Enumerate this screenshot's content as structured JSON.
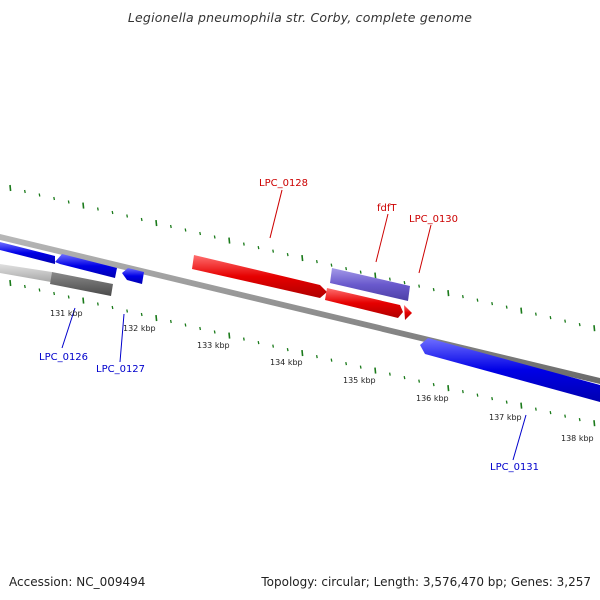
{
  "title": "Legionella pneumophila str. Corby, complete genome",
  "footer": {
    "accession": "Accession: NC_009494",
    "topology": "Topology: circular; Length: 3,576,470 bp; Genes: 3,257"
  },
  "colors": {
    "forward_gene": "#e60000",
    "reverse_gene": "#0000e6",
    "highlight_gene": "#6a5acd",
    "grey_gene": "#888888",
    "tick": "#1a7a1a",
    "axis": "#808080",
    "forward_label": "#cc0000",
    "reverse_label": "#0000cc"
  },
  "tick_labels": [
    "131 kbp",
    "132 kbp",
    "133 kbp",
    "134 kbp",
    "135 kbp",
    "136 kbp",
    "137 kbp",
    "138 kbp"
  ],
  "gene_labels": {
    "lpc_0126": "LPC_0126",
    "lpc_0127": "LPC_0127",
    "lpc_0128": "LPC_0128",
    "fdft": "fdfT",
    "lpc_0130": "LPC_0130",
    "lpc_0131": "LPC_0131"
  }
}
